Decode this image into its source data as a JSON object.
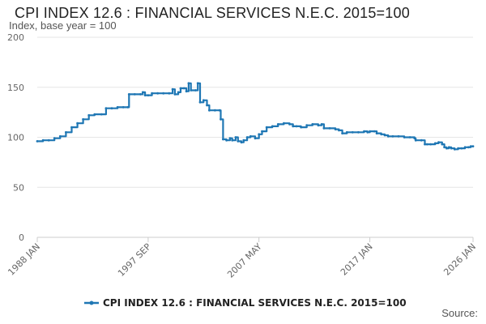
{
  "header": {
    "title": "CPI INDEX 12.6 : FINANCIAL SERVICES N.E.C. 2015=100",
    "subtitle": "Index, base year = 100"
  },
  "footer": {
    "source_label": "Source:"
  },
  "colors": {
    "series": "#1f77b4",
    "grid": "#e6e6e6",
    "axis": "#cccccc"
  },
  "chart_data": {
    "type": "line",
    "title": "CPI INDEX 12.6 : FINANCIAL SERVICES N.E.C. 2015=100",
    "ylabel": "Index, base year = 100",
    "xlabel": "",
    "ylim": [
      0,
      200
    ],
    "xlim": [
      1988.0,
      2026.0
    ],
    "yticks": [
      0,
      50,
      100,
      150,
      200
    ],
    "xticks": [
      {
        "x": 1988.0,
        "label": "1988 JAN"
      },
      {
        "x": 1997.67,
        "label": "1997 SEP"
      },
      {
        "x": 2007.33,
        "label": "2007 MAY"
      },
      {
        "x": 2017.0,
        "label": "2017 JAN"
      },
      {
        "x": 2026.0,
        "label": "2026 JAN"
      }
    ],
    "legend": "bottom",
    "series": [
      {
        "name": "CPI INDEX 12.6 : FINANCIAL SERVICES N.E.C. 2015=100",
        "points": [
          [
            1988.0,
            96
          ],
          [
            1988.5,
            97
          ],
          [
            1989.0,
            97
          ],
          [
            1989.5,
            99
          ],
          [
            1990.0,
            101
          ],
          [
            1990.5,
            105
          ],
          [
            1991.0,
            110
          ],
          [
            1991.5,
            114
          ],
          [
            1992.0,
            118
          ],
          [
            1992.5,
            122
          ],
          [
            1993.0,
            123
          ],
          [
            1993.6,
            123
          ],
          [
            1994.0,
            129
          ],
          [
            1994.5,
            129
          ],
          [
            1995.0,
            130
          ],
          [
            1995.5,
            130
          ],
          [
            1995.9,
            130
          ],
          [
            1996.0,
            143
          ],
          [
            1996.5,
            143
          ],
          [
            1997.0,
            143
          ],
          [
            1997.2,
            145
          ],
          [
            1997.4,
            142
          ],
          [
            1997.67,
            142
          ],
          [
            1998.0,
            144
          ],
          [
            1998.5,
            144
          ],
          [
            1999.0,
            144
          ],
          [
            1999.5,
            144
          ],
          [
            1999.8,
            148
          ],
          [
            2000.0,
            143
          ],
          [
            2000.3,
            145
          ],
          [
            2000.5,
            149
          ],
          [
            2000.8,
            149
          ],
          [
            2001.0,
            146
          ],
          [
            2001.2,
            154
          ],
          [
            2001.4,
            147
          ],
          [
            2001.8,
            147
          ],
          [
            2002.0,
            154
          ],
          [
            2002.2,
            135
          ],
          [
            2002.5,
            137
          ],
          [
            2002.8,
            132
          ],
          [
            2003.0,
            127
          ],
          [
            2003.5,
            127
          ],
          [
            2003.9,
            127
          ],
          [
            2004.0,
            118
          ],
          [
            2004.2,
            98
          ],
          [
            2004.5,
            97
          ],
          [
            2004.8,
            99
          ],
          [
            2005.0,
            97
          ],
          [
            2005.3,
            100
          ],
          [
            2005.5,
            96
          ],
          [
            2005.8,
            95
          ],
          [
            2006.0,
            97
          ],
          [
            2006.3,
            100
          ],
          [
            2006.6,
            101
          ],
          [
            2007.0,
            99
          ],
          [
            2007.33,
            103
          ],
          [
            2007.6,
            106
          ],
          [
            2008.0,
            110
          ],
          [
            2008.5,
            111
          ],
          [
            2009.0,
            113
          ],
          [
            2009.5,
            114
          ],
          [
            2010.0,
            113
          ],
          [
            2010.3,
            111
          ],
          [
            2010.6,
            111
          ],
          [
            2011.0,
            110
          ],
          [
            2011.5,
            112
          ],
          [
            2012.0,
            113
          ],
          [
            2012.5,
            112
          ],
          [
            2012.8,
            113
          ],
          [
            2013.0,
            109
          ],
          [
            2013.5,
            109
          ],
          [
            2014.0,
            108
          ],
          [
            2014.3,
            107
          ],
          [
            2014.6,
            104
          ],
          [
            2015.0,
            105
          ],
          [
            2015.5,
            105
          ],
          [
            2016.0,
            105
          ],
          [
            2016.5,
            106
          ],
          [
            2016.8,
            105
          ],
          [
            2017.0,
            106
          ],
          [
            2017.4,
            106
          ],
          [
            2017.6,
            104
          ],
          [
            2018.0,
            103
          ],
          [
            2018.3,
            102
          ],
          [
            2018.6,
            101
          ],
          [
            2019.0,
            101
          ],
          [
            2019.5,
            101
          ],
          [
            2020.0,
            100
          ],
          [
            2020.5,
            100
          ],
          [
            2020.9,
            99
          ],
          [
            2021.0,
            97
          ],
          [
            2021.5,
            97
          ],
          [
            2021.8,
            93
          ],
          [
            2022.0,
            93
          ],
          [
            2022.3,
            93
          ],
          [
            2022.7,
            94
          ],
          [
            2023.0,
            95
          ],
          [
            2023.3,
            93
          ],
          [
            2023.5,
            90
          ],
          [
            2023.7,
            89
          ],
          [
            2023.9,
            90
          ],
          [
            2024.1,
            89
          ],
          [
            2024.4,
            88
          ],
          [
            2024.7,
            89
          ],
          [
            2025.0,
            89
          ],
          [
            2025.3,
            90
          ],
          [
            2025.6,
            90
          ],
          [
            2025.8,
            91
          ],
          [
            2026.0,
            91
          ]
        ]
      }
    ]
  }
}
